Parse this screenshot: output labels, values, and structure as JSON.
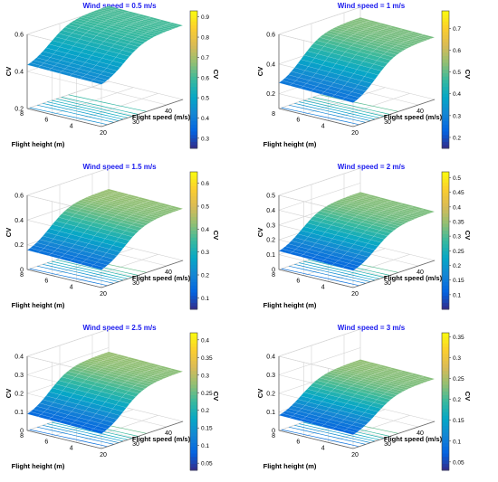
{
  "chart_data": [
    {
      "type": "surface3d",
      "title": "Wind speed = 0.5 m/s",
      "xlabel": "Flight speed (m/s)",
      "ylabel": "Flight height (m)",
      "zlabel": "CV",
      "colorbar_label": "CV",
      "x_ticks": [
        "20",
        "30",
        "40"
      ],
      "y_ticks": [
        "4",
        "6",
        "8"
      ],
      "z_ticks": [
        "0.2",
        "0.4",
        "0.6"
      ],
      "colorbar_ticks": [
        "0.3",
        "0.4",
        "0.5",
        "0.6",
        "0.7",
        "0.8",
        "0.9"
      ],
      "xlim": [
        20,
        45
      ],
      "ylim": [
        2,
        8
      ],
      "zlim": [
        0.2,
        0.6
      ],
      "clim": [
        0.25,
        0.93
      ],
      "cv_min": 0.4,
      "cv_max": 0.6
    },
    {
      "type": "surface3d",
      "title": "Wind speed = 1 m/s",
      "xlabel": "Flight speed (m/s)",
      "ylabel": "Flight height (m)",
      "zlabel": "CV",
      "colorbar_label": "CV",
      "x_ticks": [
        "20",
        "30",
        "40"
      ],
      "y_ticks": [
        "4",
        "6",
        "8"
      ],
      "z_ticks": [
        "0.2",
        "0.4",
        "0.6"
      ],
      "colorbar_ticks": [
        "0.2",
        "0.3",
        "0.4",
        "0.5",
        "0.6",
        "0.7"
      ],
      "xlim": [
        20,
        45
      ],
      "ylim": [
        2,
        8
      ],
      "zlim": [
        0.1,
        0.6
      ],
      "clim": [
        0.15,
        0.78
      ],
      "cv_min": 0.22,
      "cv_max": 0.52
    },
    {
      "type": "surface3d",
      "title": "Wind speed = 1.5 m/s",
      "xlabel": "Flight speed (m/s)",
      "ylabel": "Flight height (m)",
      "zlabel": "CV",
      "colorbar_label": "CV",
      "x_ticks": [
        "20",
        "30",
        "40"
      ],
      "y_ticks": [
        "4",
        "6",
        "8"
      ],
      "z_ticks": [
        "0",
        "0.2",
        "0.4",
        "0.6"
      ],
      "colorbar_ticks": [
        "0.1",
        "0.2",
        "0.3",
        "0.4",
        "0.5",
        "0.6"
      ],
      "xlim": [
        20,
        45
      ],
      "ylim": [
        2,
        8
      ],
      "zlim": [
        0,
        0.6
      ],
      "clim": [
        0.05,
        0.65
      ],
      "cv_min": 0.1,
      "cv_max": 0.42
    },
    {
      "type": "surface3d",
      "title": "Wind speed = 2 m/s",
      "xlabel": "Flight speed (m/s)",
      "ylabel": "Flight height (m)",
      "zlabel": "CV",
      "colorbar_label": "CV",
      "x_ticks": [
        "20",
        "30",
        "40"
      ],
      "y_ticks": [
        "4",
        "6",
        "8"
      ],
      "z_ticks": [
        "0",
        "0.1",
        "0.2",
        "0.3",
        "0.4",
        "0.5"
      ],
      "colorbar_ticks": [
        "0.1",
        "0.15",
        "0.2",
        "0.25",
        "0.3",
        "0.35",
        "0.4",
        "0.45",
        "0.5"
      ],
      "xlim": [
        20,
        45
      ],
      "ylim": [
        2,
        8
      ],
      "zlim": [
        0,
        0.5
      ],
      "clim": [
        0.05,
        0.52
      ],
      "cv_min": 0.08,
      "cv_max": 0.33
    },
    {
      "type": "surface3d",
      "title": "Wind speed = 2.5 m/s",
      "xlabel": "Flight speed (m/s)",
      "ylabel": "Flight height (m)",
      "zlabel": "CV",
      "colorbar_label": "CV",
      "x_ticks": [
        "20",
        "30",
        "40"
      ],
      "y_ticks": [
        "4",
        "6",
        "8"
      ],
      "z_ticks": [
        "0",
        "0.1",
        "0.2",
        "0.3",
        "0.4"
      ],
      "colorbar_ticks": [
        "0.05",
        "0.1",
        "0.15",
        "0.2",
        "0.25",
        "0.3",
        "0.35",
        "0.4"
      ],
      "xlim": [
        20,
        45
      ],
      "ylim": [
        2,
        8
      ],
      "zlim": [
        0,
        0.4
      ],
      "clim": [
        0.03,
        0.42
      ],
      "cv_min": 0.05,
      "cv_max": 0.27
    },
    {
      "type": "surface3d",
      "title": "Wind speed = 3 m/s",
      "xlabel": "Flight speed (m/s)",
      "ylabel": "Flight height (m)",
      "zlabel": "CV",
      "colorbar_label": "CV",
      "x_ticks": [
        "20",
        "30",
        "40"
      ],
      "y_ticks": [
        "4",
        "6",
        "8"
      ],
      "z_ticks": [
        "0",
        "0.1",
        "0.2",
        "0.3",
        "0.4"
      ],
      "colorbar_ticks": [
        "0.05",
        "0.1",
        "0.15",
        "0.2",
        "0.25",
        "0.3",
        "0.35"
      ],
      "xlim": [
        20,
        45
      ],
      "ylim": [
        2,
        8
      ],
      "zlim": [
        0,
        0.4
      ],
      "clim": [
        0.03,
        0.36
      ],
      "cv_min": 0.05,
      "cv_max": 0.23
    }
  ],
  "colormap": [
    "#352a87",
    "#0363e1",
    "#1485d4",
    "#06a7c6",
    "#38b99e",
    "#92bf73",
    "#d9ba56",
    "#fcce2e",
    "#f9fb0e"
  ]
}
